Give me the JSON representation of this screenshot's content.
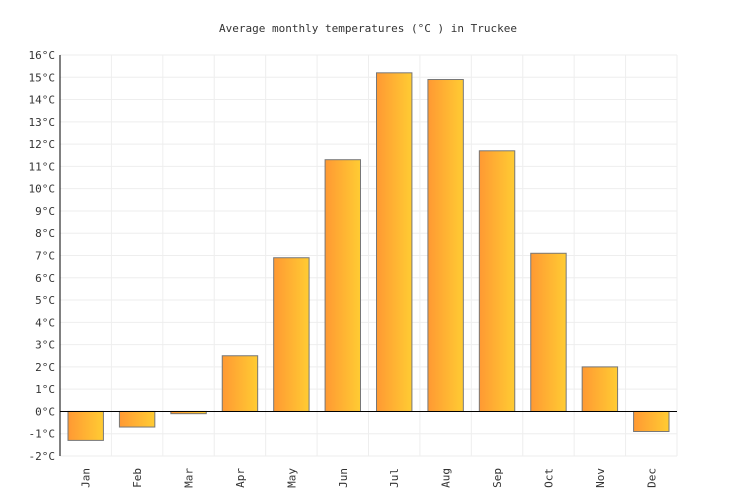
{
  "chart_data": {
    "type": "bar",
    "title": "Average monthly temperatures (°C ) in Truckee",
    "categories": [
      "Jan",
      "Feb",
      "Mar",
      "Apr",
      "May",
      "Jun",
      "Jul",
      "Aug",
      "Sep",
      "Oct",
      "Nov",
      "Dec"
    ],
    "values": [
      -1.3,
      -0.7,
      -0.1,
      2.5,
      6.9,
      11.3,
      15.2,
      14.9,
      11.7,
      7.1,
      2.0,
      -0.9
    ],
    "unit": "°C",
    "ylim": [
      -2,
      16
    ],
    "ytick_step": 1,
    "grid": true,
    "colors": {
      "bar_start": "#ff9933",
      "bar_end": "#ffcc33",
      "bar_stroke": "#777777",
      "grid": "#eeeeee",
      "axis": "#000000"
    }
  }
}
